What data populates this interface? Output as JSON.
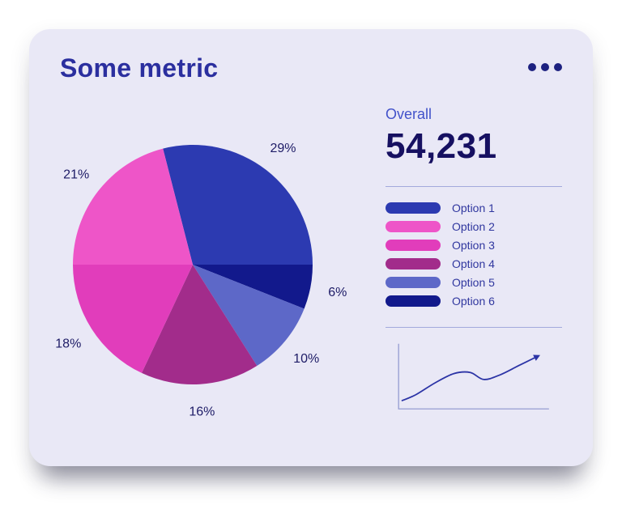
{
  "card": {
    "title": "Some metric"
  },
  "menu": {
    "icon": "ellipsis-icon"
  },
  "overall": {
    "label": "Overall",
    "value": "54,231"
  },
  "legend": {
    "items": [
      {
        "label": "Option 1",
        "color": "#2c3ab1"
      },
      {
        "label": "Option 2",
        "color": "#ee55c8"
      },
      {
        "label": "Option 3",
        "color": "#e13dbb"
      },
      {
        "label": "Option 4",
        "color": "#a22c8b"
      },
      {
        "label": "Option 5",
        "color": "#5d68c8"
      },
      {
        "label": "Option 6",
        "color": "#12198c"
      }
    ]
  },
  "chart_data": [
    {
      "type": "pie",
      "title": "Some metric",
      "start_angle_deg": -14.4,
      "direction": "clockwise",
      "value_label_format": "percent",
      "legend_position": "right",
      "slices": [
        {
          "label": "Option 1",
          "percent": 29,
          "color": "#2c3ab1"
        },
        {
          "label": "Option 6",
          "percent": 6,
          "color": "#12198c"
        },
        {
          "label": "Option 5",
          "percent": 10,
          "color": "#5d68c8"
        },
        {
          "label": "Option 4",
          "percent": 16,
          "color": "#a22c8b"
        },
        {
          "label": "Option 3",
          "percent": 18,
          "color": "#e13dbb"
        },
        {
          "label": "Option 2",
          "percent": 21,
          "color": "#ee55c8"
        }
      ]
    },
    {
      "type": "line",
      "name": "trend-sparkline",
      "x": [
        0,
        10,
        24,
        38,
        50,
        60,
        72,
        86,
        100
      ],
      "y": [
        8,
        18,
        38,
        54,
        56,
        44,
        52,
        68,
        84
      ],
      "xlim": [
        0,
        100
      ],
      "ylim": [
        0,
        100
      ],
      "color": "#2c34a6",
      "axis_color": "#969dd2",
      "arrow_end": true,
      "grid": false
    }
  ]
}
